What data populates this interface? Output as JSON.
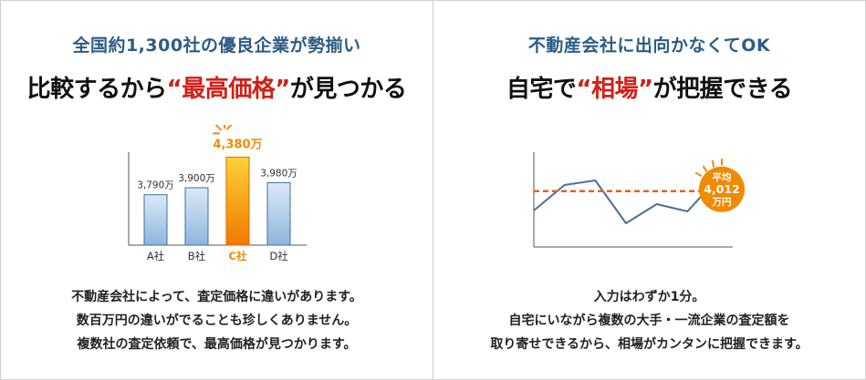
{
  "left_panel": {
    "subtitle": "全国約1,300社の優良企業が勢揃い",
    "headline_pre": "比較するから",
    "headline_highlight": "“最高価格”",
    "headline_post": "が見つかる",
    "description": [
      "不動産会社によって、査定価格に違いがあります。",
      "数百万円の違いがでることも珍しくありません。",
      "複数社の査定依頼で、最高価格が見つかります。"
    ]
  },
  "right_panel": {
    "subtitle": "不動産会社に出向かなくてOK",
    "headline_pre": "自宅で",
    "headline_highlight": "“相場”",
    "headline_post": "が把握できる",
    "average_badge": [
      "平均",
      "4,012",
      "万円"
    ],
    "description": [
      "入力はわずか1分。",
      "自宅にいながら複数の大手・一流企業の査定額を",
      "取り寄せできるから、相場がカンタンに把握できます。"
    ]
  },
  "colors": {
    "subtitle": "#2b5d86",
    "highlight": "#d31f16",
    "accent_orange": "#f08a00",
    "bar_blue_light": "#dbe9f7",
    "bar_blue_dark": "#8db6dc",
    "line": "#4d6f93",
    "avg_line": "#e8611a"
  },
  "chart_data": [
    {
      "type": "bar",
      "categories": [
        "A社",
        "B社",
        "C社",
        "D社"
      ],
      "values": [
        3790,
        3900,
        4380,
        3980
      ],
      "value_labels": [
        "3,790万",
        "3,900万",
        "4,380万",
        "3,980万"
      ],
      "highlight_index": 2,
      "ylim": [
        3000,
        4400
      ]
    },
    {
      "type": "line",
      "y": [
        3800,
        4080,
        4130,
        3660,
        3870,
        3790,
        4160
      ],
      "average": 4012,
      "ylim": [
        3400,
        4400
      ]
    }
  ]
}
